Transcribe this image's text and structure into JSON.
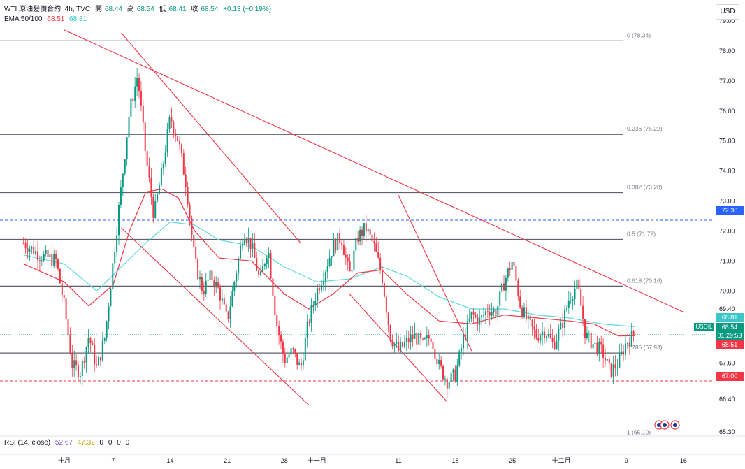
{
  "header": {
    "symbol_line": "WTI 原油髮價合約, 4h, TVC",
    "open_label": "開",
    "open_value": "68.44",
    "high_label": "高",
    "high_value": "68.54",
    "low_label": "低",
    "low_value": "68.41",
    "close_label": "收",
    "close_value": "68.54",
    "change": "+0.13 (+0.19%)",
    "ema_label": "EMA 50/100",
    "ema50": "68.51",
    "ema100": "68.81",
    "rsi_label": "RSI (14, close)",
    "rsi_value": "52.67",
    "rsi_ma": "47.32",
    "rsi_extra": [
      "0",
      "0",
      "0",
      "0"
    ]
  },
  "currency": "USD",
  "colors": {
    "up": "#089981",
    "down": "#f23645",
    "ema50": "#f23645",
    "ema100": "#5fd9dd",
    "trendline": "#f23645",
    "fib": "#5d606b",
    "blue_level": "#2962ff",
    "red_level": "#f23645"
  },
  "tags": {
    "blue_level": "72.36",
    "ema100": "68.81",
    "symbol": "USOIL",
    "price": "68.54",
    "countdown": "01:29:53",
    "ema50": "68.51",
    "red_level": "67.00"
  },
  "chart_data": {
    "type": "candlestick",
    "timeframe": "4h",
    "ylim": [
      65.3,
      79.0
    ],
    "y_ticks": [
      "79.00",
      "78.00",
      "77.00",
      "76.00",
      "75.00",
      "74.00",
      "73.00",
      "72.00",
      "71.00",
      "70.00",
      "69.40",
      "67.60",
      "66.40",
      "65.30"
    ],
    "x_ticks": [
      "十月",
      "7",
      "14",
      "21",
      "28",
      "十一月",
      "11",
      "18",
      "25",
      "十二月",
      "9",
      "16"
    ],
    "fib_levels": [
      {
        "ratio": "0",
        "price": 78.34,
        "label": "0 (78.34)"
      },
      {
        "ratio": "0.236",
        "price": 75.22,
        "label": "0.236 (75.22)"
      },
      {
        "ratio": "0.382",
        "price": 73.28,
        "label": "0.382 (73.28)"
      },
      {
        "ratio": "0.5",
        "price": 71.72,
        "label": "0.5 (71.72)"
      },
      {
        "ratio": "0.618",
        "price": 70.16,
        "label": "0.618 (70.16)"
      },
      {
        "ratio": "0.786",
        "price": 67.93,
        "label": "0.786 (67.93)"
      },
      {
        "ratio": "1",
        "price": 65.1,
        "label": "1 (65.10)"
      }
    ],
    "horizontal_levels": [
      {
        "price": 72.36,
        "style": "dashed",
        "color": "blue"
      },
      {
        "price": 67.0,
        "style": "dashed",
        "color": "red"
      }
    ],
    "trendlines": [
      {
        "from": [
          "Oct 1",
          78.7
        ],
        "to": [
          "Dec 16",
          69.3
        ]
      },
      {
        "from": [
          "Oct 8",
          78.6
        ],
        "to": [
          "Oct 30",
          71.6
        ]
      },
      {
        "from": [
          "Oct 8",
          72.1
        ],
        "to": [
          "Oct 31",
          66.2
        ]
      },
      {
        "from": [
          "Nov 11",
          73.2
        ],
        "to": [
          "Nov 20",
          68.0
        ]
      },
      {
        "from": [
          "Nov 5",
          69.9
        ],
        "to": [
          "Nov 17",
          66.3
        ]
      }
    ],
    "price_path": [
      [
        "Sep 26",
        71.6
      ],
      [
        "Sep 28",
        71.2
      ],
      [
        "Sep 30",
        71.0
      ],
      [
        "Oct 1",
        69.5
      ],
      [
        "Oct 2",
        67.5
      ],
      [
        "Oct 3",
        67.3
      ],
      [
        "Oct 4",
        68.5
      ],
      [
        "Oct 5",
        67.4
      ],
      [
        "Oct 6",
        68.5
      ],
      [
        "Oct 7",
        71.0
      ],
      [
        "Oct 8",
        73.5
      ],
      [
        "Oct 9",
        76.0
      ],
      [
        "Oct 10",
        77.2
      ],
      [
        "Oct 11",
        74.5
      ],
      [
        "Oct 12",
        72.5
      ],
      [
        "Oct 13",
        74.0
      ],
      [
        "Oct 14",
        75.8
      ],
      [
        "Oct 15",
        75.0
      ],
      [
        "Oct 16",
        73.5
      ],
      [
        "Oct 17",
        71.0
      ],
      [
        "Oct 18",
        70.0
      ],
      [
        "Oct 19",
        70.5
      ],
      [
        "Oct 20",
        70.0
      ],
      [
        "Oct 21",
        69.0
      ],
      [
        "Oct 22",
        70.5
      ],
      [
        "Oct 23",
        72.0
      ],
      [
        "Oct 24",
        71.5
      ],
      [
        "Oct 25",
        70.3
      ],
      [
        "Oct 26",
        71.5
      ],
      [
        "Oct 27",
        69.0
      ],
      [
        "Oct 28",
        67.7
      ],
      [
        "Oct 29",
        68.0
      ],
      [
        "Oct 30",
        67.4
      ],
      [
        "Oct 31",
        69.0
      ],
      [
        "Nov 1",
        70.0
      ],
      [
        "Nov 2",
        70.7
      ],
      [
        "Nov 3",
        71.5
      ],
      [
        "Nov 4",
        71.8
      ],
      [
        "Nov 5",
        70.5
      ],
      [
        "Nov 6",
        71.8
      ],
      [
        "Nov 7",
        72.1
      ],
      [
        "Nov 8",
        71.5
      ],
      [
        "Nov 9",
        70.5
      ],
      [
        "Nov 10",
        68.5
      ],
      [
        "Nov 11",
        68.0
      ],
      [
        "Nov 12",
        68.3
      ],
      [
        "Nov 13",
        68.5
      ],
      [
        "Nov 14",
        68.2
      ],
      [
        "Nov 15",
        68.5
      ],
      [
        "Nov 16",
        67.5
      ],
      [
        "Nov 17",
        67.0
      ],
      [
        "Nov 18",
        67.2
      ],
      [
        "Nov 19",
        68.4
      ],
      [
        "Nov 20",
        69.2
      ],
      [
        "Nov 21",
        69.0
      ],
      [
        "Nov 22",
        69.4
      ],
      [
        "Nov 23",
        69.3
      ],
      [
        "Nov 24",
        70.3
      ],
      [
        "Nov 25",
        71.0
      ],
      [
        "Nov 26",
        69.5
      ],
      [
        "Nov 27",
        68.9
      ],
      [
        "Nov 28",
        68.5
      ],
      [
        "Nov 29",
        68.7
      ],
      [
        "Nov 30",
        68.2
      ],
      [
        "Dec 1",
        68.8
      ],
      [
        "Dec 2",
        69.8
      ],
      [
        "Dec 3",
        70.2
      ],
      [
        "Dec 4",
        68.5
      ],
      [
        "Dec 5",
        68.2
      ],
      [
        "Dec 6",
        68.0
      ],
      [
        "Dec 7",
        67.3
      ],
      [
        "Dec 8",
        67.6
      ],
      [
        "Dec 9",
        68.3
      ],
      [
        "Dec 10",
        68.54
      ]
    ],
    "ema50_path": [
      [
        "Sep 26",
        70.9
      ],
      [
        "Oct 1",
        70.3
      ],
      [
        "Oct 4",
        69.5
      ],
      [
        "Oct 7",
        70.2
      ],
      [
        "Oct 9",
        72.0
      ],
      [
        "Oct 11",
        73.3
      ],
      [
        "Oct 13",
        73.4
      ],
      [
        "Oct 15",
        73.1
      ],
      [
        "Oct 17",
        72.0
      ],
      [
        "Oct 20",
        71.1
      ],
      [
        "Oct 24",
        71.0
      ],
      [
        "Oct 28",
        69.9
      ],
      [
        "Oct 31",
        69.4
      ],
      [
        "Nov 3",
        69.9
      ],
      [
        "Nov 6",
        70.6
      ],
      [
        "Nov 9",
        70.7
      ],
      [
        "Nov 12",
        69.9
      ],
      [
        "Nov 16",
        69.0
      ],
      [
        "Nov 20",
        68.9
      ],
      [
        "Nov 24",
        69.2
      ],
      [
        "Nov 28",
        69.1
      ],
      [
        "Dec 2",
        69.0
      ],
      [
        "Dec 5",
        68.9
      ],
      [
        "Dec 8",
        68.5
      ],
      [
        "Dec 10",
        68.51
      ]
    ],
    "ema100_path": [
      [
        "Sep 26",
        71.2
      ],
      [
        "Oct 1",
        70.9
      ],
      [
        "Oct 5",
        70.0
      ],
      [
        "Oct 8",
        70.8
      ],
      [
        "Oct 11",
        71.6
      ],
      [
        "Oct 14",
        72.3
      ],
      [
        "Oct 17",
        72.2
      ],
      [
        "Oct 20",
        71.7
      ],
      [
        "Oct 24",
        71.5
      ],
      [
        "Oct 28",
        70.8
      ],
      [
        "Nov 1",
        70.3
      ],
      [
        "Nov 5",
        70.4
      ],
      [
        "Nov 9",
        70.8
      ],
      [
        "Nov 12",
        70.5
      ],
      [
        "Nov 16",
        69.8
      ],
      [
        "Nov 20",
        69.4
      ],
      [
        "Nov 24",
        69.4
      ],
      [
        "Nov 28",
        69.2
      ],
      [
        "Dec 2",
        69.1
      ],
      [
        "Dec 6",
        68.9
      ],
      [
        "Dec 10",
        68.81
      ]
    ]
  }
}
